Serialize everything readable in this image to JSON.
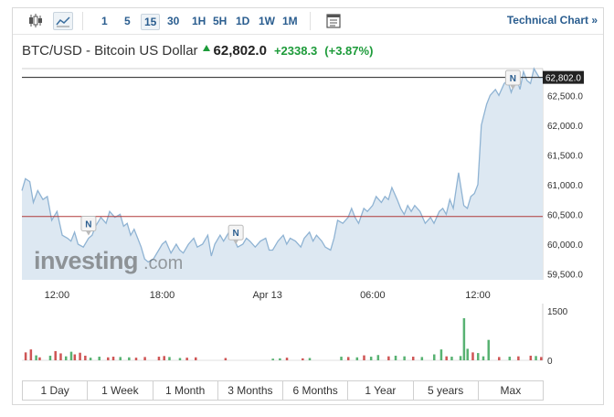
{
  "toolbar": {
    "timeframes": [
      "1",
      "5",
      "15",
      "30",
      "1H",
      "5H",
      "1D",
      "1W",
      "1M"
    ],
    "active_timeframe": "15",
    "technical_chart": "Technical Chart »",
    "icons": [
      "candlestick-icon",
      "area-chart-icon",
      "calendar-icon"
    ]
  },
  "header": {
    "name": "BTC/USD - Bitcoin US Dollar",
    "price": "62,802.0",
    "change": "+2338.3",
    "change_pct": "(+3.87%)",
    "up_color": "#1d9b3a"
  },
  "watermark": {
    "brand": "investing",
    "suffix": ".com"
  },
  "ranges": [
    "1 Day",
    "1 Week",
    "1 Month",
    "3 Months",
    "6 Months",
    "1 Year",
    "5 years",
    "Max"
  ],
  "chart_data": {
    "type": "area",
    "price_axis": {
      "ticks": [
        "62,500.0",
        "62,000.0",
        "61,500.0",
        "61,000.0",
        "60,500.0",
        "60,000.0",
        "59,500.0"
      ],
      "tick_values": [
        62500,
        62000,
        61500,
        61000,
        60500,
        60000,
        59500
      ],
      "range": [
        59400,
        62950
      ]
    },
    "time_axis": {
      "ticks": [
        "12:00",
        "18:00",
        "Apr 13",
        "06:00",
        "12:00"
      ],
      "tick_positions": [
        2,
        8,
        14,
        20,
        26
      ],
      "range": [
        0,
        29.7
      ]
    },
    "current_price": {
      "value": 62802,
      "label": "62,802.0"
    },
    "previous_close": 60464,
    "news_markers": [
      {
        "label": "N",
        "x": 3.8
      },
      {
        "label": "N",
        "x": 12.2
      },
      {
        "label": "N",
        "x": 28.0
      }
    ],
    "x": [
      0,
      0.2,
      0.45,
      0.65,
      0.9,
      1.2,
      1.45,
      1.7,
      2.0,
      2.3,
      2.6,
      2.8,
      3.0,
      3.2,
      3.5,
      3.8,
      4.0,
      4.2,
      4.5,
      4.8,
      5.0,
      5.3,
      5.6,
      5.8,
      6.0,
      6.2,
      6.4,
      6.6,
      6.8,
      7.0,
      7.2,
      7.5,
      7.8,
      8.0,
      8.2,
      8.5,
      8.8,
      9.0,
      9.2,
      9.5,
      9.8,
      10.0,
      10.3,
      10.6,
      10.8,
      11.0,
      11.3,
      11.5,
      11.8,
      12.0,
      12.3,
      12.6,
      12.8,
      13.0,
      13.3,
      13.6,
      13.9,
      14.1,
      14.3,
      14.6,
      14.9,
      15.1,
      15.3,
      15.6,
      15.9,
      16.1,
      16.4,
      16.6,
      16.8,
      17.1,
      17.3,
      17.6,
      17.8,
      18.0,
      18.3,
      18.6,
      18.8,
      19.0,
      19.2,
      19.5,
      19.7,
      20.0,
      20.2,
      20.5,
      20.7,
      20.9,
      21.1,
      21.4,
      21.6,
      21.8,
      22.0,
      22.2,
      22.4,
      22.7,
      23.0,
      23.3,
      23.5,
      23.8,
      24.0,
      24.2,
      24.4,
      24.6,
      24.9,
      25.2,
      25.4,
      25.6,
      25.8,
      26.0,
      26.2,
      26.5,
      26.7,
      27.0,
      27.2,
      27.5,
      27.7,
      27.9,
      28.2,
      28.4,
      28.6,
      28.8,
      29.0,
      29.2,
      29.5,
      29.7
    ],
    "y": [
      60900,
      61100,
      61050,
      60700,
      60900,
      60750,
      60800,
      60400,
      60550,
      60150,
      60100,
      60050,
      60200,
      60000,
      59950,
      60100,
      60150,
      60300,
      60450,
      60350,
      60550,
      60450,
      60500,
      60300,
      60350,
      60150,
      60250,
      60100,
      59950,
      59750,
      59700,
      59750,
      59900,
      60000,
      60050,
      59850,
      60000,
      59900,
      59850,
      60000,
      60100,
      59950,
      60000,
      60150,
      59800,
      60000,
      60150,
      60050,
      60200,
      60150,
      59950,
      60000,
      60100,
      60050,
      59950,
      60050,
      60100,
      59900,
      59900,
      60050,
      60150,
      60000,
      60100,
      60050,
      59950,
      60100,
      60200,
      60050,
      60150,
      60050,
      59950,
      59900,
      60100,
      60400,
      60350,
      60450,
      60600,
      60450,
      60350,
      60600,
      60550,
      60650,
      60800,
      60700,
      60800,
      60750,
      60950,
      60750,
      60600,
      60500,
      60650,
      60550,
      60650,
      60550,
      60350,
      60450,
      60350,
      60550,
      60600,
      60500,
      60750,
      60600,
      61200,
      60650,
      60600,
      60800,
      60850,
      61000,
      62000,
      62350,
      62500,
      62600,
      62500,
      62700,
      62750,
      62550,
      62800,
      62600,
      62900,
      62750,
      62700,
      62950,
      62800,
      62802
    ],
    "volume_axis": {
      "ticks": [
        "1500",
        "0"
      ],
      "tick_values": [
        1500,
        0
      ]
    },
    "volume": [
      {
        "x": 0.2,
        "v": 240,
        "d": "down"
      },
      {
        "x": 0.5,
        "v": 330,
        "d": "down"
      },
      {
        "x": 0.8,
        "v": 150,
        "d": "up"
      },
      {
        "x": 1.0,
        "v": 90,
        "d": "down"
      },
      {
        "x": 1.6,
        "v": 140,
        "d": "up"
      },
      {
        "x": 1.9,
        "v": 280,
        "d": "down"
      },
      {
        "x": 2.2,
        "v": 210,
        "d": "down"
      },
      {
        "x": 2.5,
        "v": 120,
        "d": "up"
      },
      {
        "x": 2.8,
        "v": 260,
        "d": "up"
      },
      {
        "x": 3.0,
        "v": 180,
        "d": "down"
      },
      {
        "x": 3.3,
        "v": 230,
        "d": "down"
      },
      {
        "x": 3.6,
        "v": 140,
        "d": "down"
      },
      {
        "x": 3.9,
        "v": 80,
        "d": "up"
      },
      {
        "x": 4.4,
        "v": 110,
        "d": "up"
      },
      {
        "x": 4.9,
        "v": 90,
        "d": "down"
      },
      {
        "x": 5.2,
        "v": 110,
        "d": "down"
      },
      {
        "x": 5.6,
        "v": 100,
        "d": "up"
      },
      {
        "x": 6.1,
        "v": 90,
        "d": "up"
      },
      {
        "x": 6.5,
        "v": 80,
        "d": "down"
      },
      {
        "x": 7.0,
        "v": 100,
        "d": "down"
      },
      {
        "x": 7.8,
        "v": 110,
        "d": "down"
      },
      {
        "x": 8.1,
        "v": 130,
        "d": "down"
      },
      {
        "x": 8.4,
        "v": 100,
        "d": "up"
      },
      {
        "x": 9.0,
        "v": 70,
        "d": "up"
      },
      {
        "x": 9.4,
        "v": 80,
        "d": "down"
      },
      {
        "x": 9.9,
        "v": 90,
        "d": "down"
      },
      {
        "x": 11.6,
        "v": 70,
        "d": "down"
      },
      {
        "x": 14.3,
        "v": 50,
        "d": "up"
      },
      {
        "x": 14.7,
        "v": 60,
        "d": "up"
      },
      {
        "x": 15.1,
        "v": 80,
        "d": "down"
      },
      {
        "x": 16.0,
        "v": 60,
        "d": "down"
      },
      {
        "x": 16.4,
        "v": 70,
        "d": "up"
      },
      {
        "x": 18.2,
        "v": 110,
        "d": "up"
      },
      {
        "x": 18.6,
        "v": 100,
        "d": "down"
      },
      {
        "x": 19.1,
        "v": 90,
        "d": "up"
      },
      {
        "x": 19.5,
        "v": 150,
        "d": "down"
      },
      {
        "x": 19.9,
        "v": 110,
        "d": "up"
      },
      {
        "x": 20.3,
        "v": 160,
        "d": "up"
      },
      {
        "x": 20.9,
        "v": 120,
        "d": "down"
      },
      {
        "x": 21.3,
        "v": 140,
        "d": "up"
      },
      {
        "x": 21.8,
        "v": 120,
        "d": "up"
      },
      {
        "x": 22.3,
        "v": 110,
        "d": "down"
      },
      {
        "x": 22.8,
        "v": 100,
        "d": "up"
      },
      {
        "x": 23.5,
        "v": 180,
        "d": "up"
      },
      {
        "x": 23.9,
        "v": 330,
        "d": "up"
      },
      {
        "x": 24.2,
        "v": 120,
        "d": "down"
      },
      {
        "x": 24.5,
        "v": 110,
        "d": "up"
      },
      {
        "x": 25.0,
        "v": 130,
        "d": "up"
      },
      {
        "x": 25.2,
        "v": 1280,
        "d": "up"
      },
      {
        "x": 25.4,
        "v": 350,
        "d": "up"
      },
      {
        "x": 25.7,
        "v": 240,
        "d": "down"
      },
      {
        "x": 26.0,
        "v": 220,
        "d": "up"
      },
      {
        "x": 26.3,
        "v": 120,
        "d": "up"
      },
      {
        "x": 26.6,
        "v": 620,
        "d": "up"
      },
      {
        "x": 27.2,
        "v": 100,
        "d": "down"
      },
      {
        "x": 27.8,
        "v": 110,
        "d": "up"
      },
      {
        "x": 28.3,
        "v": 120,
        "d": "down"
      },
      {
        "x": 29.0,
        "v": 140,
        "d": "down"
      },
      {
        "x": 29.3,
        "v": 130,
        "d": "up"
      },
      {
        "x": 29.6,
        "v": 100,
        "d": "down"
      }
    ],
    "colors": {
      "line": "#8fb3d3",
      "fill": "#dde8f2",
      "prev_close": "#b03a3a",
      "vol_up": "#58b272",
      "vol_down": "#cf5555"
    },
    "grid": false
  }
}
